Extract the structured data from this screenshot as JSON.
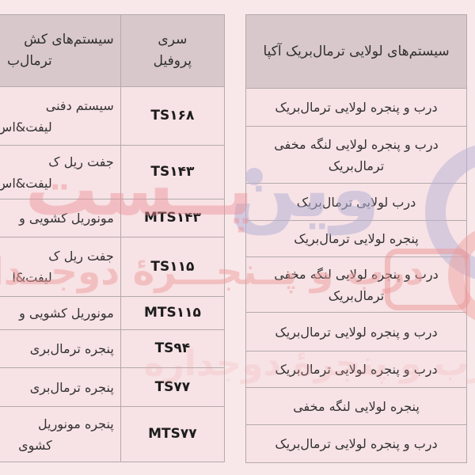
{
  "page": {
    "background": "#f9e8ea",
    "cell_bg": "#f7e2e5",
    "header_bg": "#d8c8cb",
    "border_color": "#b3aaac",
    "text_color": "#333333"
  },
  "left_table": {
    "header": {
      "desc_line1": "سیستم‌های کش",
      "desc_line2": "ترمال‌ب",
      "series_line1": "سری",
      "series_line2": "پروفیل"
    },
    "rows": [
      {
        "desc1": "سیستم دفنی",
        "desc2": "لیفت&اس",
        "series": "TS۱۶۸"
      },
      {
        "desc1": "جفت ریل ک",
        "desc2": "لیفت&اس",
        "series": "TS۱۴۳"
      },
      {
        "desc1": "مونوریل کشویی و",
        "series": "MTS۱۴۳"
      },
      {
        "desc1": "جفت ریل ک",
        "desc2": "لیفت&ا",
        "series": "TS۱۱۵"
      },
      {
        "desc1": "مونوریل کشویی و",
        "series": "MTS۱۱۵"
      },
      {
        "desc1": "پنجره ترمال‌بری",
        "series": "TS۹۴"
      },
      {
        "desc1": "پنجره ترمال‌بری",
        "series": "TS۷۷"
      },
      {
        "desc1": "پنجره مونوریل",
        "desc2": "کشوی",
        "series": "MTS۷۷"
      }
    ]
  },
  "right_table": {
    "header": "سیستم‌های لولایی ترمال‌بریک آکپا",
    "rows": [
      {
        "label": "درب و پنجره لولایی ترمال‌بریک"
      },
      {
        "label": "درب و پنجره لولایی لنگه مخفی ترمال‌بریک"
      },
      {
        "label": "درب لولایی ترمال‌بریک"
      },
      {
        "label": "پنجره لولایی ترمال‌بریک"
      },
      {
        "label": "درب و پنجره لولایی لنگه مخفی ترمال‌بریک"
      },
      {
        "label": "درب و پنجره لولایی ترمال‌بریک"
      },
      {
        "label": "درب و پنجره لولایی ترمال‌بریک"
      },
      {
        "label": "پنجره لولایی لنگه مخفی"
      },
      {
        "label": "درب و پنجره لولایی ترمال‌بریک"
      }
    ]
  },
  "watermark": {
    "word_1": "وین",
    "word_2": "پــست",
    "tagline": "درب و پــنجـــرهٔ دوجــداره",
    "tagline_faint": "درب و پنجرهٔ دوجداره",
    "lavender_color": "#b7b1d6",
    "salmon_color": "#ee9b9b"
  }
}
